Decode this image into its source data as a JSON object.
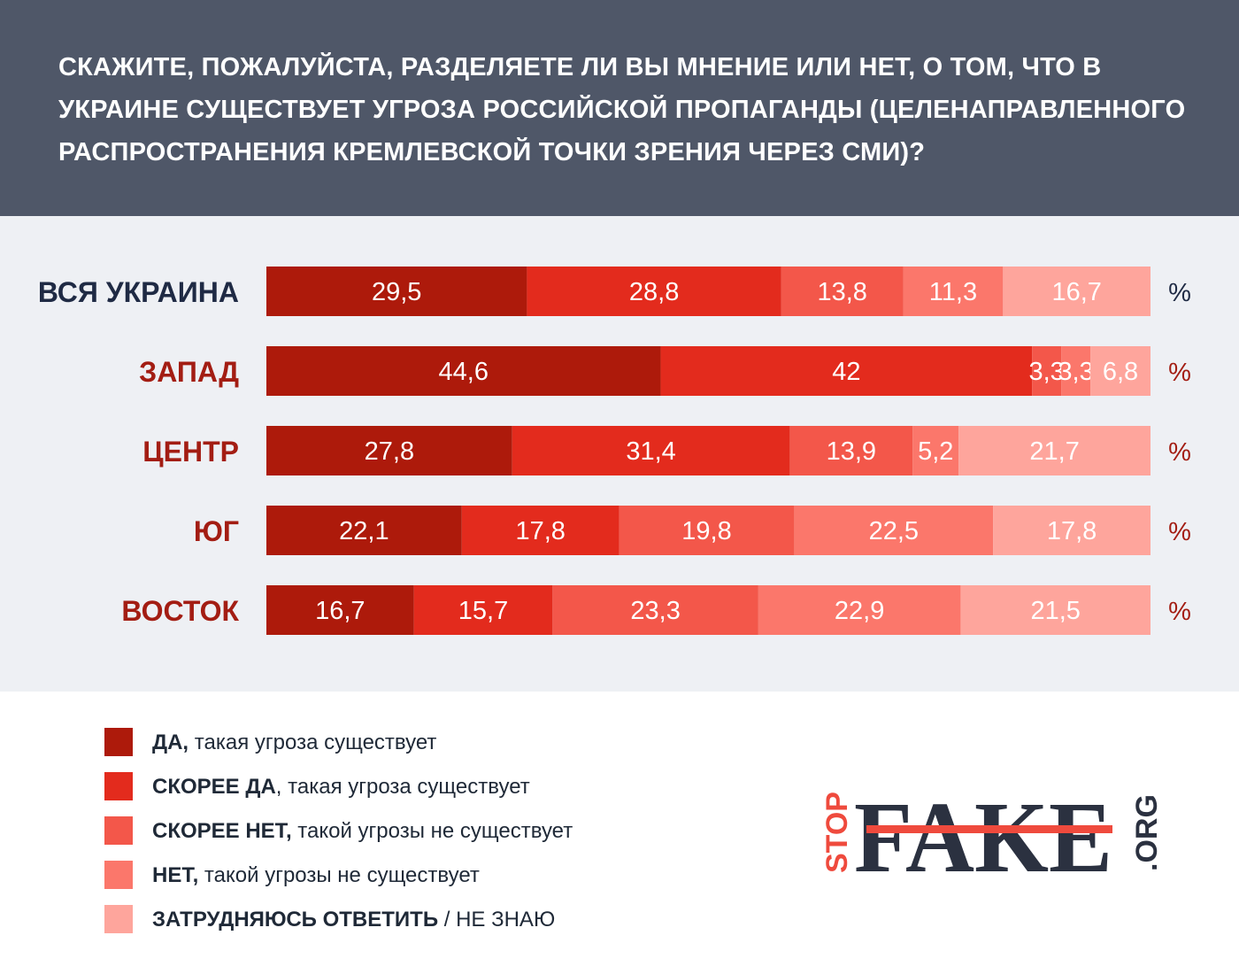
{
  "title": "СКАЖИТЕ, ПОЖАЛУЙСТА, РАЗДЕЛЯЕТЕ ЛИ ВЫ МНЕНИЕ ИЛИ НЕТ, О ТОМ, ЧТО В УКРАИНЕ СУЩЕСТВУЕТ УГРОЗА РОССИЙСКОЙ ПРОПАГАНДЫ (ЦЕЛЕНАПРАВЛЕННОГО РАСПРОСТРАНЕНИЯ КРЕМЛЕВСКОЙ ТОЧКИ ЗРЕНИЯ ЧЕРЕЗ СМИ)?",
  "chart_data": {
    "type": "bar",
    "orientation": "horizontal",
    "stacked": true,
    "unit": "%",
    "categories": [
      "ВСЯ УКРАИНА",
      "ЗАПАД",
      "ЦЕНТР",
      "ЮГ",
      "ВОСТОК"
    ],
    "category_colors": [
      "#1f2a44",
      "#a31d13",
      "#a31d13",
      "#a31d13",
      "#a31d13"
    ],
    "series": [
      {
        "name": "ДА, такая угроза существует",
        "color": "#ad1a0b",
        "labels": [
          "29,5",
          "44,6",
          "27,8",
          "22,1",
          "16,7"
        ],
        "values": [
          29.5,
          44.6,
          27.8,
          22.1,
          16.7
        ]
      },
      {
        "name": "СКОРЕЕ ДА, такая угроза существует",
        "color": "#e32b1d",
        "labels": [
          "28,8",
          "42",
          "31,4",
          "17,8",
          "15,7"
        ],
        "values": [
          28.8,
          42,
          31.4,
          17.8,
          15.7
        ]
      },
      {
        "name": "СКОРЕЕ НЕТ, такой угрозы не существует",
        "color": "#f3574a",
        "labels": [
          "13,8",
          "3,3",
          "13,9",
          "19,8",
          "23,3"
        ],
        "values": [
          13.8,
          3.3,
          13.9,
          19.8,
          23.3
        ]
      },
      {
        "name": "НЕТ, такой угрозы не существует",
        "color": "#fb776b",
        "labels": [
          "11,3",
          "3,3",
          "5,2",
          "22,5",
          "22,9"
        ],
        "values": [
          11.3,
          3.3,
          5.2,
          22.5,
          22.9
        ]
      },
      {
        "name": "ЗАТРУДНЯЮСЬ ОТВЕТИТЬ / НЕ ЗНАЮ",
        "color": "#fea59c",
        "labels": [
          "16,7",
          "6,8",
          "21,7",
          "17,8",
          "21,5"
        ],
        "values": [
          16.7,
          6.8,
          21.7,
          17.8,
          21.5
        ]
      }
    ],
    "legend_position": "bottom-left"
  },
  "legend": [
    {
      "bold": "ДА,",
      "rest": " такая угроза существует",
      "color": "#ad1a0b"
    },
    {
      "bold": "СКОРЕЕ ДА",
      "rest": ", такая угроза существует",
      "color": "#e32b1d"
    },
    {
      "bold": "СКОРЕЕ НЕТ,",
      "rest": " такой угрозы не существует",
      "color": "#f3574a"
    },
    {
      "bold": "НЕТ,",
      "rest": " такой угрозы не существует",
      "color": "#fb776b"
    },
    {
      "bold": "ЗАТРУДНЯЮСЬ ОТВЕТИТЬ",
      "rest": " / НЕ ЗНАЮ",
      "color": "#fea59c"
    }
  ],
  "logo": {
    "stop": "STOP",
    "fake": "FAKE",
    "org": ".ORG",
    "colors": {
      "dark": "#2b3140",
      "accent": "#ef4a3d"
    }
  }
}
